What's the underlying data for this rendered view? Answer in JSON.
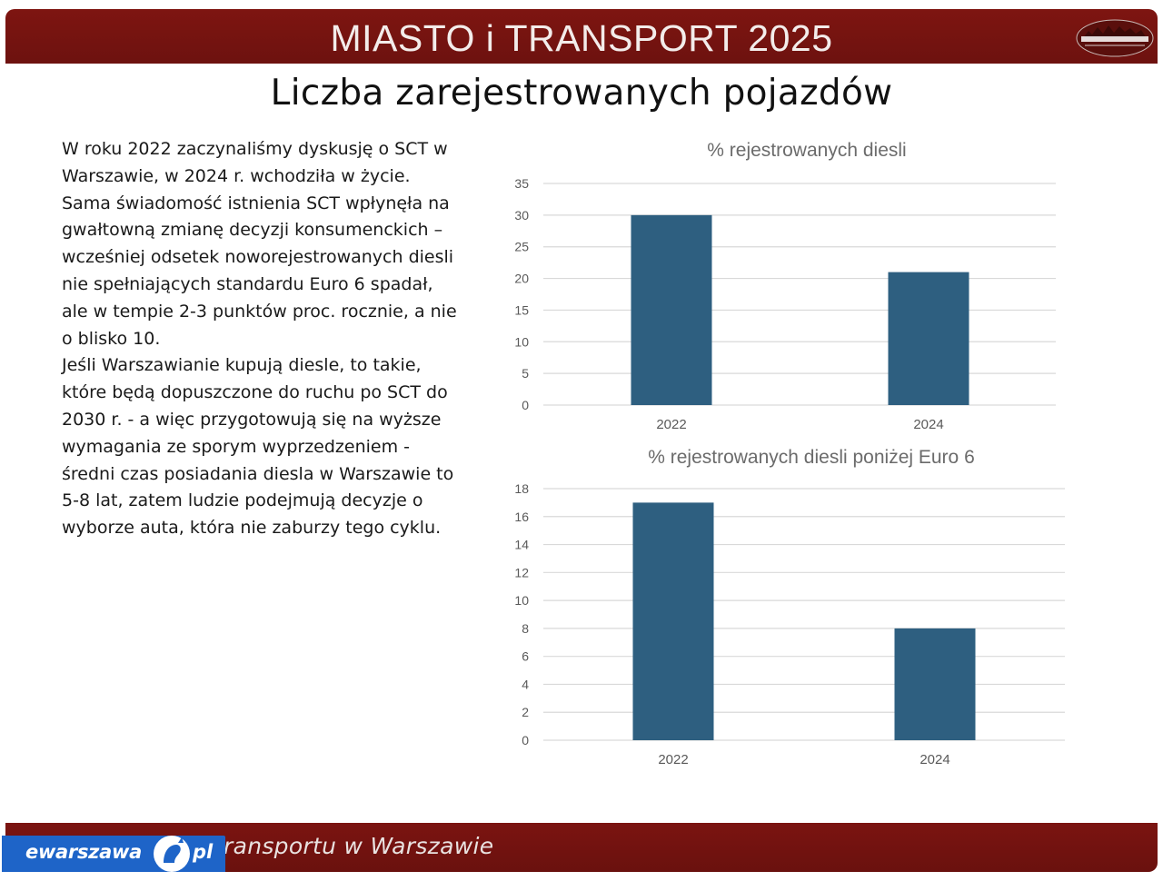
{
  "header": {
    "title": "MIASTO i TRANSPORT 2025",
    "logo_text": "MIASTO I TRANSPORT"
  },
  "slide": {
    "title": "Liczba zarejestrowanych pojazdów"
  },
  "body": {
    "paragraph": "W roku 2022 zaczynaliśmy dyskusję o SCT w\nWarszawie, w 2024 r. wchodziła w życie.\nSama świadomość istnienia SCT wpłynęła na\ngwałtowną zmianę decyzji konsumenckich –\nwcześniej odsetek noworejestrowanych diesli\nnie spełniających standardu Euro 6 spadał,\nale w tempie 2-3 punktów proc. rocznie, a nie\no blisko 10.\nJeśli Warszawianie kupują diesle, to takie,\nktóre będą dopuszczone do ruchu po SCT do\n2030 r. - a więc przygotowują się na wyższe\nwymagania ze sporym wyprzedzeniem -\nśredni czas posiadania diesla w Warszawie to\n5-8 lat, zatem ludzie podejmują decyzje o\nwyborze auta, która nie zaburzy tego cyklu."
  },
  "footer": {
    "text": "ransportu w Warszawie"
  },
  "badge": {
    "name": "ewarszawa",
    "tld": "pl"
  },
  "colors": {
    "bar": "#2e5f80",
    "brand": "#7a1410",
    "grid": "#d9d9d9",
    "badge": "#1e64c8"
  },
  "chart_data": [
    {
      "type": "bar",
      "title": "% rejestrowanych diesli",
      "categories": [
        "2022",
        "2024"
      ],
      "values": [
        30,
        21
      ],
      "ylim": [
        0,
        35
      ],
      "yticks": [
        0,
        5,
        10,
        15,
        20,
        25,
        30,
        35
      ],
      "grid": true
    },
    {
      "type": "bar",
      "title": "% rejestrowanych diesli poniżej Euro 6",
      "categories": [
        "2022",
        "2024"
      ],
      "values": [
        17,
        8
      ],
      "ylim": [
        0,
        18
      ],
      "yticks": [
        0,
        2,
        4,
        6,
        8,
        10,
        12,
        14,
        16,
        18
      ],
      "grid": true
    }
  ]
}
